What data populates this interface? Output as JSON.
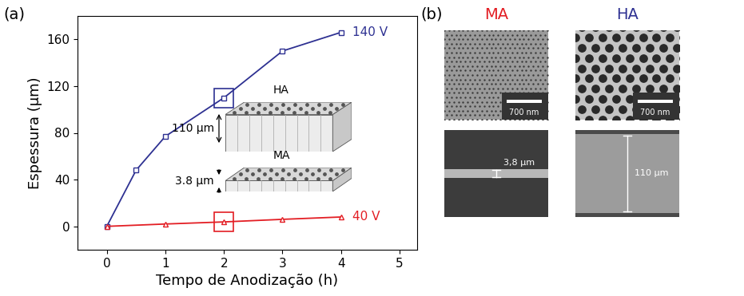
{
  "chart_data": {
    "type": "line",
    "x_label": "Tempo de Anodização (h)",
    "y_label": "Espessura (μm)",
    "xlim": [
      -0.5,
      5.3
    ],
    "ylim": [
      -20,
      180
    ],
    "xticks": [
      0,
      1,
      2,
      3,
      4,
      5
    ],
    "yticks": [
      0,
      40,
      80,
      120,
      160
    ],
    "series": [
      {
        "name": "140 V",
        "color": "#2e3192",
        "marker": "square",
        "x": [
          0,
          0.5,
          1,
          2,
          3,
          4
        ],
        "values": [
          0,
          48,
          77,
          110,
          150,
          166
        ]
      },
      {
        "name": "40 V",
        "color": "#e31e24",
        "marker": "triangle",
        "x": [
          0,
          1,
          2,
          3,
          4
        ],
        "values": [
          0,
          2,
          3.8,
          6,
          8
        ]
      }
    ]
  },
  "panel_labels": [
    "(a)",
    "(b)"
  ],
  "insets": [
    {
      "label": "HA",
      "thickness": 110,
      "thickness_label": "110 μm"
    },
    {
      "label": "MA",
      "thickness": 3.8,
      "thickness_label": "3.8 μm"
    }
  ],
  "micrographs": [
    {
      "title": "MA",
      "color": "#e31e24",
      "scale_bar": "700 nm",
      "cross_section": "3,8 μm"
    },
    {
      "title": "HA",
      "color": "#2e3192",
      "scale_bar": "700 nm",
      "cross_section": "110 μm"
    }
  ]
}
